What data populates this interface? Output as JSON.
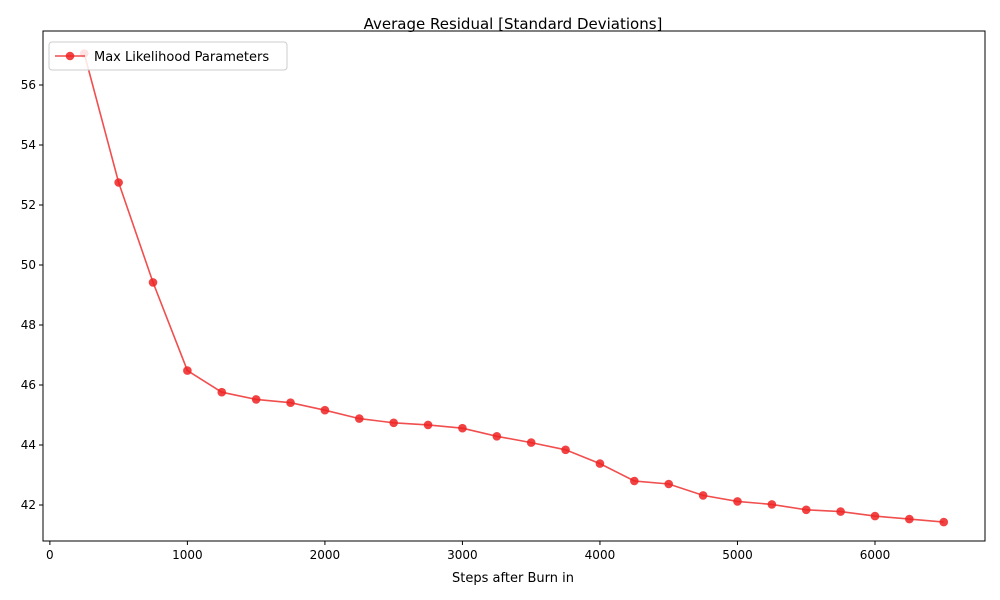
{
  "chart_data": {
    "type": "line",
    "title": "Average Residual [Standard Deviations]",
    "xlabel": "Steps after Burn in",
    "ylabel": "",
    "xlim": [
      -50,
      6800
    ],
    "ylim": [
      40.8,
      57.8
    ],
    "xticks": [
      0,
      1000,
      2000,
      3000,
      4000,
      5000,
      6000
    ],
    "yticks": [
      42,
      44,
      46,
      48,
      50,
      52,
      54,
      56
    ],
    "grid": false,
    "legend_position": "upper-left",
    "series": [
      {
        "name": "Max Likelihood Parameters",
        "color": "#ee2222",
        "marker": "circle",
        "x": [
          250,
          500,
          750,
          1000,
          1250,
          1500,
          1750,
          2000,
          2250,
          2500,
          2750,
          3000,
          3250,
          3500,
          3750,
          4000,
          4250,
          4500,
          4750,
          5000,
          5250,
          5500,
          5750,
          6000,
          6250,
          6500
        ],
        "y": [
          57.05,
          52.75,
          49.42,
          46.48,
          45.76,
          45.52,
          45.41,
          45.16,
          44.88,
          44.74,
          44.67,
          44.56,
          44.29,
          44.08,
          43.84,
          43.38,
          42.8,
          42.7,
          42.32,
          42.12,
          42.02,
          41.84,
          41.78,
          41.63,
          41.53,
          41.43
        ]
      }
    ]
  }
}
